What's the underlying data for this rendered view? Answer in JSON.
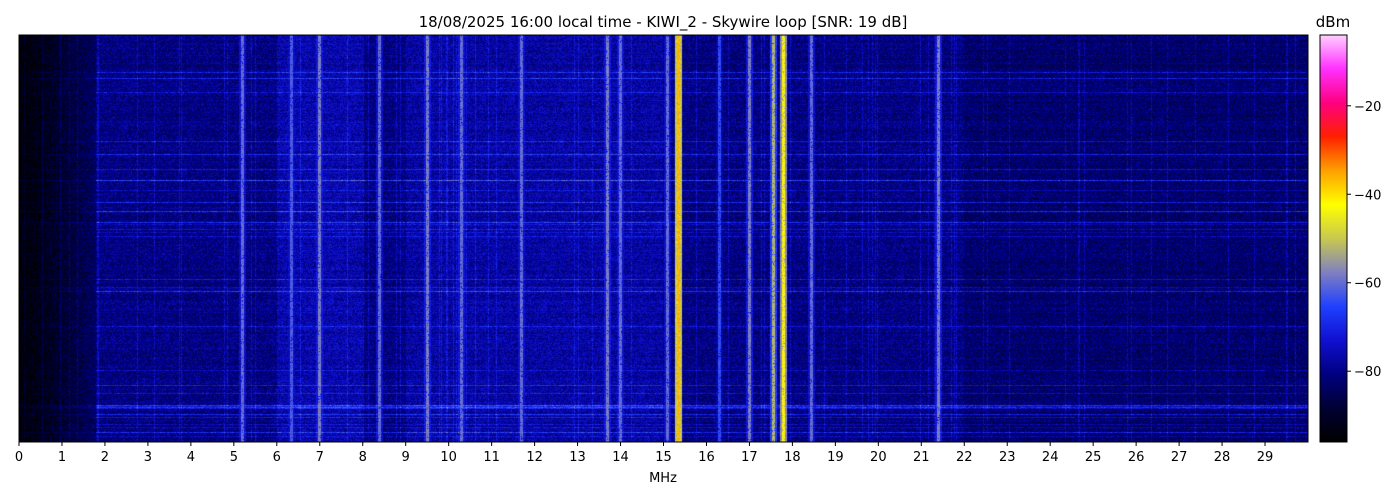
{
  "chart_data": {
    "type": "heatmap",
    "title": "18/08/2025 16:00 local time - KIWI_2 - Skywire loop [SNR: 19 dB]",
    "xlabel": "MHz",
    "ylabel": "",
    "xlim": [
      0,
      30
    ],
    "x_ticks": [
      "0",
      "1",
      "2",
      "3",
      "4",
      "5",
      "6",
      "7",
      "8",
      "9",
      "10",
      "11",
      "12",
      "13",
      "14",
      "15",
      "16",
      "17",
      "18",
      "19",
      "20",
      "21",
      "22",
      "23",
      "24",
      "25",
      "26",
      "27",
      "28",
      "29"
    ],
    "colorbar": {
      "label": "dBm",
      "range": [
        -96,
        -4
      ],
      "ticks": [
        -20,
        -40,
        -60,
        -80
      ],
      "tick_labels": [
        "−20",
        "−40",
        "−60",
        "−80"
      ],
      "colors": [
        "#000000",
        "#000033",
        "#000080",
        "#1010d0",
        "#2040ff",
        "#8080c0",
        "#c8c850",
        "#ffff00",
        "#ffa000",
        "#ff2000",
        "#ff0080",
        "#ff30ff",
        "#ffd0ff"
      ]
    },
    "noise_floor_dbm": -82,
    "dark_band_mhz": [
      0,
      1.8
    ],
    "strong_signals": [
      {
        "mhz": 5.2,
        "dbm": -60
      },
      {
        "mhz": 6.35,
        "dbm": -62
      },
      {
        "mhz": 7.0,
        "dbm": -58
      },
      {
        "mhz": 8.4,
        "dbm": -60
      },
      {
        "mhz": 9.5,
        "dbm": -58
      },
      {
        "mhz": 10.3,
        "dbm": -60
      },
      {
        "mhz": 11.7,
        "dbm": -60
      },
      {
        "mhz": 13.7,
        "dbm": -58
      },
      {
        "mhz": 14.0,
        "dbm": -60
      },
      {
        "mhz": 15.1,
        "dbm": -60
      },
      {
        "mhz": 15.35,
        "dbm": -36
      },
      {
        "mhz": 16.3,
        "dbm": -64
      },
      {
        "mhz": 17.0,
        "dbm": -58
      },
      {
        "mhz": 17.55,
        "dbm": -52
      },
      {
        "mhz": 17.8,
        "dbm": -42
      },
      {
        "mhz": 18.45,
        "dbm": -60
      },
      {
        "mhz": 21.4,
        "dbm": -58
      }
    ],
    "grid": false,
    "legend": "none"
  }
}
